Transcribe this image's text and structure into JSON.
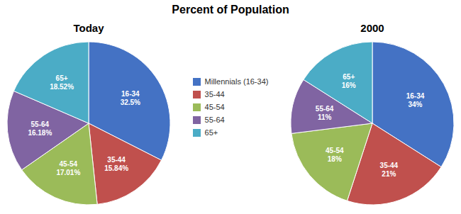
{
  "title": "Percent of Population",
  "chart_data": [
    {
      "type": "pie",
      "title": "Today",
      "categories": [
        "Millennials (16-34)",
        "35-44",
        "45-54",
        "55-64",
        "65+"
      ],
      "values": [
        32.5,
        15.84,
        17.01,
        16.18,
        18.52
      ],
      "value_labels": [
        "16-34\n32.5%",
        "35-44\n15.84%",
        "45-54\n17.01%",
        "55-64\n16.18%",
        "65+\n18.52%"
      ],
      "colors": [
        "#4472C4",
        "#C0504D",
        "#9BBB59",
        "#8064A2",
        "#4BACC6"
      ],
      "data_labels": true,
      "legend": "center"
    },
    {
      "type": "pie",
      "title": "2000",
      "categories": [
        "Millennials (16-34)",
        "35-44",
        "45-54",
        "55-64",
        "65+"
      ],
      "values": [
        34,
        21,
        18,
        11,
        16
      ],
      "value_labels": [
        "16-34\n34%",
        "35-44\n21%",
        "45-54\n18%",
        "55-64\n11%",
        "65+\n16%"
      ],
      "colors": [
        "#4472C4",
        "#C0504D",
        "#9BBB59",
        "#8064A2",
        "#4BACC6"
      ],
      "data_labels": true
    }
  ]
}
